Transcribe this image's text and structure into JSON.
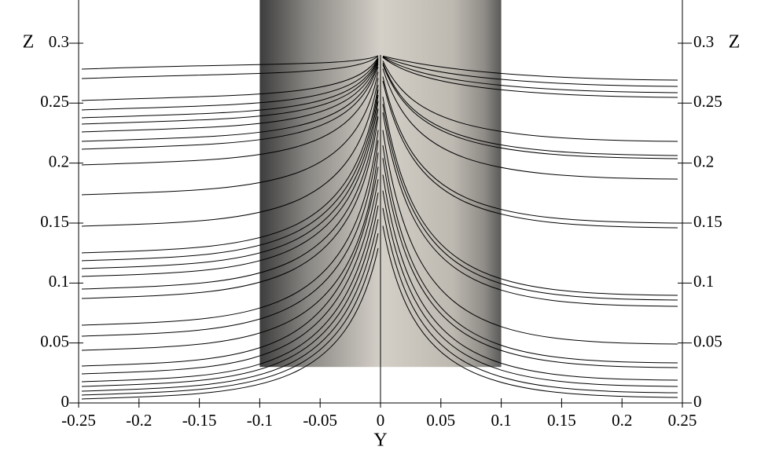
{
  "chart_data": {
    "type": "streamline",
    "xlabel": "Y",
    "ylabel": "Z",
    "xlim": [
      -0.25,
      0.25
    ],
    "ylim": [
      0,
      0.336
    ],
    "xticks": [
      -0.25,
      -0.2,
      -0.15,
      -0.1,
      -0.05,
      0,
      0.05,
      0.1,
      0.15,
      0.2,
      0.25
    ],
    "yticks": [
      0,
      0.05,
      0.1,
      0.15,
      0.2,
      0.25,
      0.3
    ],
    "cylinder": {
      "y": [
        -0.1,
        0.1
      ],
      "z": [
        0.03,
        0.336
      ]
    }
  }
}
